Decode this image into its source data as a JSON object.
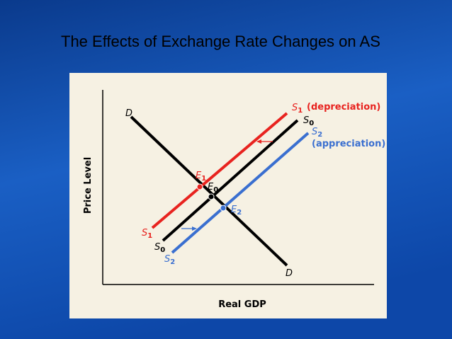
{
  "title": "The Effects of Exchange Rate Changes on AS",
  "axes": {
    "y_label": "Price Level",
    "x_label": "Real GDP"
  },
  "curves": {
    "demand": {
      "top_label": "D",
      "bottom_label": "D"
    },
    "s0": {
      "top_label": {
        "letter": "S",
        "sub": "0"
      },
      "bottom_label": {
        "letter": "S",
        "sub": "0"
      }
    },
    "s1": {
      "top_label": {
        "letter": "S",
        "sub": "1"
      },
      "note": "(depreciation)",
      "bottom_label": {
        "letter": "S",
        "sub": "1"
      }
    },
    "s2": {
      "top_label": {
        "letter": "S",
        "sub": "2"
      },
      "note": "(appreciation)",
      "bottom_label": {
        "letter": "S",
        "sub": "2"
      }
    }
  },
  "equilibria": {
    "e1": {
      "letter": "E",
      "sub": "1"
    },
    "e0": {
      "letter": "E",
      "sub": "0"
    },
    "e2": {
      "letter": "E",
      "sub": "2"
    }
  }
}
